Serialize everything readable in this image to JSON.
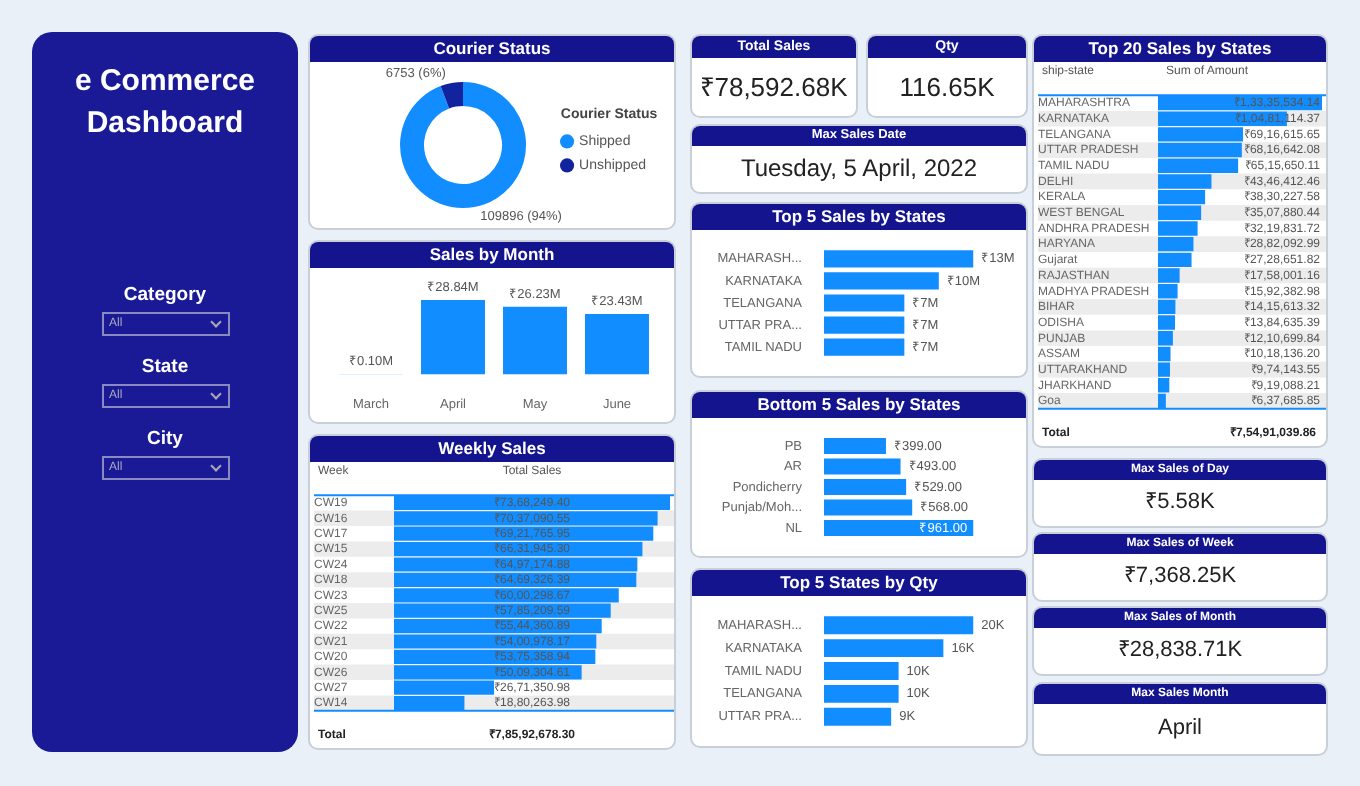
{
  "chart_data": [
    {
      "type": "other",
      "title": "e Commerce Dashboard",
      "annotations": [
        "Category",
        "All",
        "State",
        "All",
        "City",
        "All"
      ]
    },
    {
      "type": "donut",
      "title": "Courier Status",
      "categories": [
        "Shipped",
        "Unshipped"
      ],
      "values": [
        109896,
        6753
      ],
      "colors": [
        "#118dff",
        "#12239e"
      ],
      "value_labels": [
        "109896 (94%)",
        "6753 (6%)"
      ],
      "legend": "right",
      "legend_title": "Courier Status"
    },
    {
      "type": "bar",
      "title": "Sales by Month",
      "categories": [
        "March",
        "April",
        "May",
        "June"
      ],
      "values": [
        0.1,
        28.84,
        26.23,
        23.43
      ],
      "color": "#118dff",
      "value_labels": [
        "₹0.10M",
        "₹28.84M",
        "₹26.23M",
        "₹23.43M"
      ],
      "tick_labels": "x"
    },
    {
      "type": "bar",
      "title": "Weekly Sales",
      "orientation": "horizontal",
      "ylabel": "Week",
      "xlabel": "Total Sales",
      "categories": [
        "CW19",
        "CW16",
        "CW17",
        "CW15",
        "CW24",
        "CW18",
        "CW23",
        "CW25",
        "CW22",
        "CW21",
        "CW20",
        "CW26",
        "CW27",
        "CW14"
      ],
      "values": [
        7368249.4,
        7037090.55,
        6921765.95,
        6631945.3,
        6497174.88,
        6469326.39,
        6000298.67,
        5785209.59,
        5544360.89,
        5400978.17,
        5375358.94,
        5009304.61,
        2671350.98,
        1880263.98
      ],
      "color": "#118dff",
      "value_labels": [
        "₹73,68,249.40",
        "₹70,37,090.55",
        "₹69,21,765.95",
        "₹66,31,945.30",
        "₹64,97,174.88",
        "₹64,69,326.39",
        "₹60,00,298.67",
        "₹57,85,209.59",
        "₹55,44,360.89",
        "₹54,00,978.17",
        "₹53,75,358.94",
        "₹50,09,304.61",
        "₹26,71,350.98",
        "₹18,80,263.98"
      ],
      "tick_labels": "y",
      "annotations": [
        "Total",
        "₹7,85,92,678.30"
      ]
    },
    {
      "type": "other",
      "title": "Total Sales",
      "annotations": [
        "₹78,592.68K"
      ]
    },
    {
      "type": "other",
      "title": "Qty",
      "annotations": [
        "116.65K"
      ]
    },
    {
      "type": "other",
      "title": "Max Sales Date",
      "annotations": [
        "Tuesday, 5 April, 2022"
      ]
    },
    {
      "type": "bar",
      "title": "Top 5 Sales by States",
      "orientation": "horizontal",
      "categories": [
        "MAHARASH...",
        "KARNATAKA",
        "TELANGANA",
        "UTTAR PRA...",
        "TAMIL NADU"
      ],
      "values": [
        13,
        10,
        7,
        7,
        7
      ],
      "color": "#118dff",
      "value_labels": [
        "₹13M",
        "₹10M",
        "₹7M",
        "₹7M",
        "₹7M"
      ],
      "tick_labels": "y"
    },
    {
      "type": "bar",
      "title": "Bottom 5 Sales by States",
      "orientation": "horizontal",
      "categories": [
        "PB",
        "AR",
        "Pondicherry",
        "Punjab/Moh...",
        "NL"
      ],
      "values": [
        399,
        493,
        529,
        568,
        961
      ],
      "color": "#118dff",
      "value_labels": [
        "₹399.00",
        "₹493.00",
        "₹529.00",
        "₹568.00",
        "₹961.00"
      ],
      "tick_labels": "y"
    },
    {
      "type": "bar",
      "title": "Top 5 States by Qty",
      "orientation": "horizontal",
      "categories": [
        "MAHARASH...",
        "KARNATAKA",
        "TAMIL NADU",
        "TELANGANA",
        "UTTAR PRA..."
      ],
      "values": [
        20,
        16,
        10,
        10,
        9
      ],
      "color": "#118dff",
      "value_labels": [
        "20K",
        "16K",
        "10K",
        "10K",
        "9K"
      ],
      "tick_labels": "y"
    },
    {
      "type": "bar",
      "title": "Top 20 Sales by States",
      "orientation": "horizontal",
      "ylabel": "ship-state",
      "xlabel": "Sum of Amount",
      "categories": [
        "MAHARASHTRA",
        "KARNATAKA",
        "TELANGANA",
        "UTTAR PRADESH",
        "TAMIL NADU",
        "DELHI",
        "KERALA",
        "WEST BENGAL",
        "ANDHRA PRADESH",
        "HARYANA",
        "Gujarat",
        "RAJASTHAN",
        "MADHYA PRADESH",
        "BIHAR",
        "ODISHA",
        "PUNJAB",
        "ASSAM",
        "UTTARAKHAND",
        "JHARKHAND",
        "Goa"
      ],
      "values": [
        13335534.14,
        10481114.37,
        6916615.65,
        6816642.08,
        6515650.11,
        4346412.46,
        3830227.58,
        3507880.44,
        3219831.72,
        2882092.99,
        2728651.82,
        1758001.16,
        1592382.98,
        1415613.32,
        1384635.39,
        1210699.84,
        1018136.2,
        974143.55,
        919088.21,
        637685.85
      ],
      "color": "#118dff",
      "value_labels": [
        "₹1,33,35,534.14",
        "₹1,04,81,114.37",
        "₹69,16,615.65",
        "₹68,16,642.08",
        "₹65,15,650.11",
        "₹43,46,412.46",
        "₹38,30,227.58",
        "₹35,07,880.44",
        "₹32,19,831.72",
        "₹28,82,092.99",
        "₹27,28,651.82",
        "₹17,58,001.16",
        "₹15,92,382.98",
        "₹14,15,613.32",
        "₹13,84,635.39",
        "₹12,10,699.84",
        "₹10,18,136.20",
        "₹9,74,143.55",
        "₹9,19,088.21",
        "₹6,37,685.85"
      ],
      "tick_labels": "y",
      "annotations": [
        "Total",
        "₹7,54,91,039.86"
      ]
    },
    {
      "type": "other",
      "title": "Max Sales of Day",
      "annotations": [
        "₹5.58K"
      ]
    },
    {
      "type": "other",
      "title": "Max Sales of Week",
      "annotations": [
        "₹7,368.25K"
      ]
    },
    {
      "type": "other",
      "title": "Max Sales of Month",
      "annotations": [
        "₹28,838.71K"
      ]
    },
    {
      "type": "other",
      "title": "Max Sales Month",
      "annotations": [
        "April"
      ]
    }
  ]
}
